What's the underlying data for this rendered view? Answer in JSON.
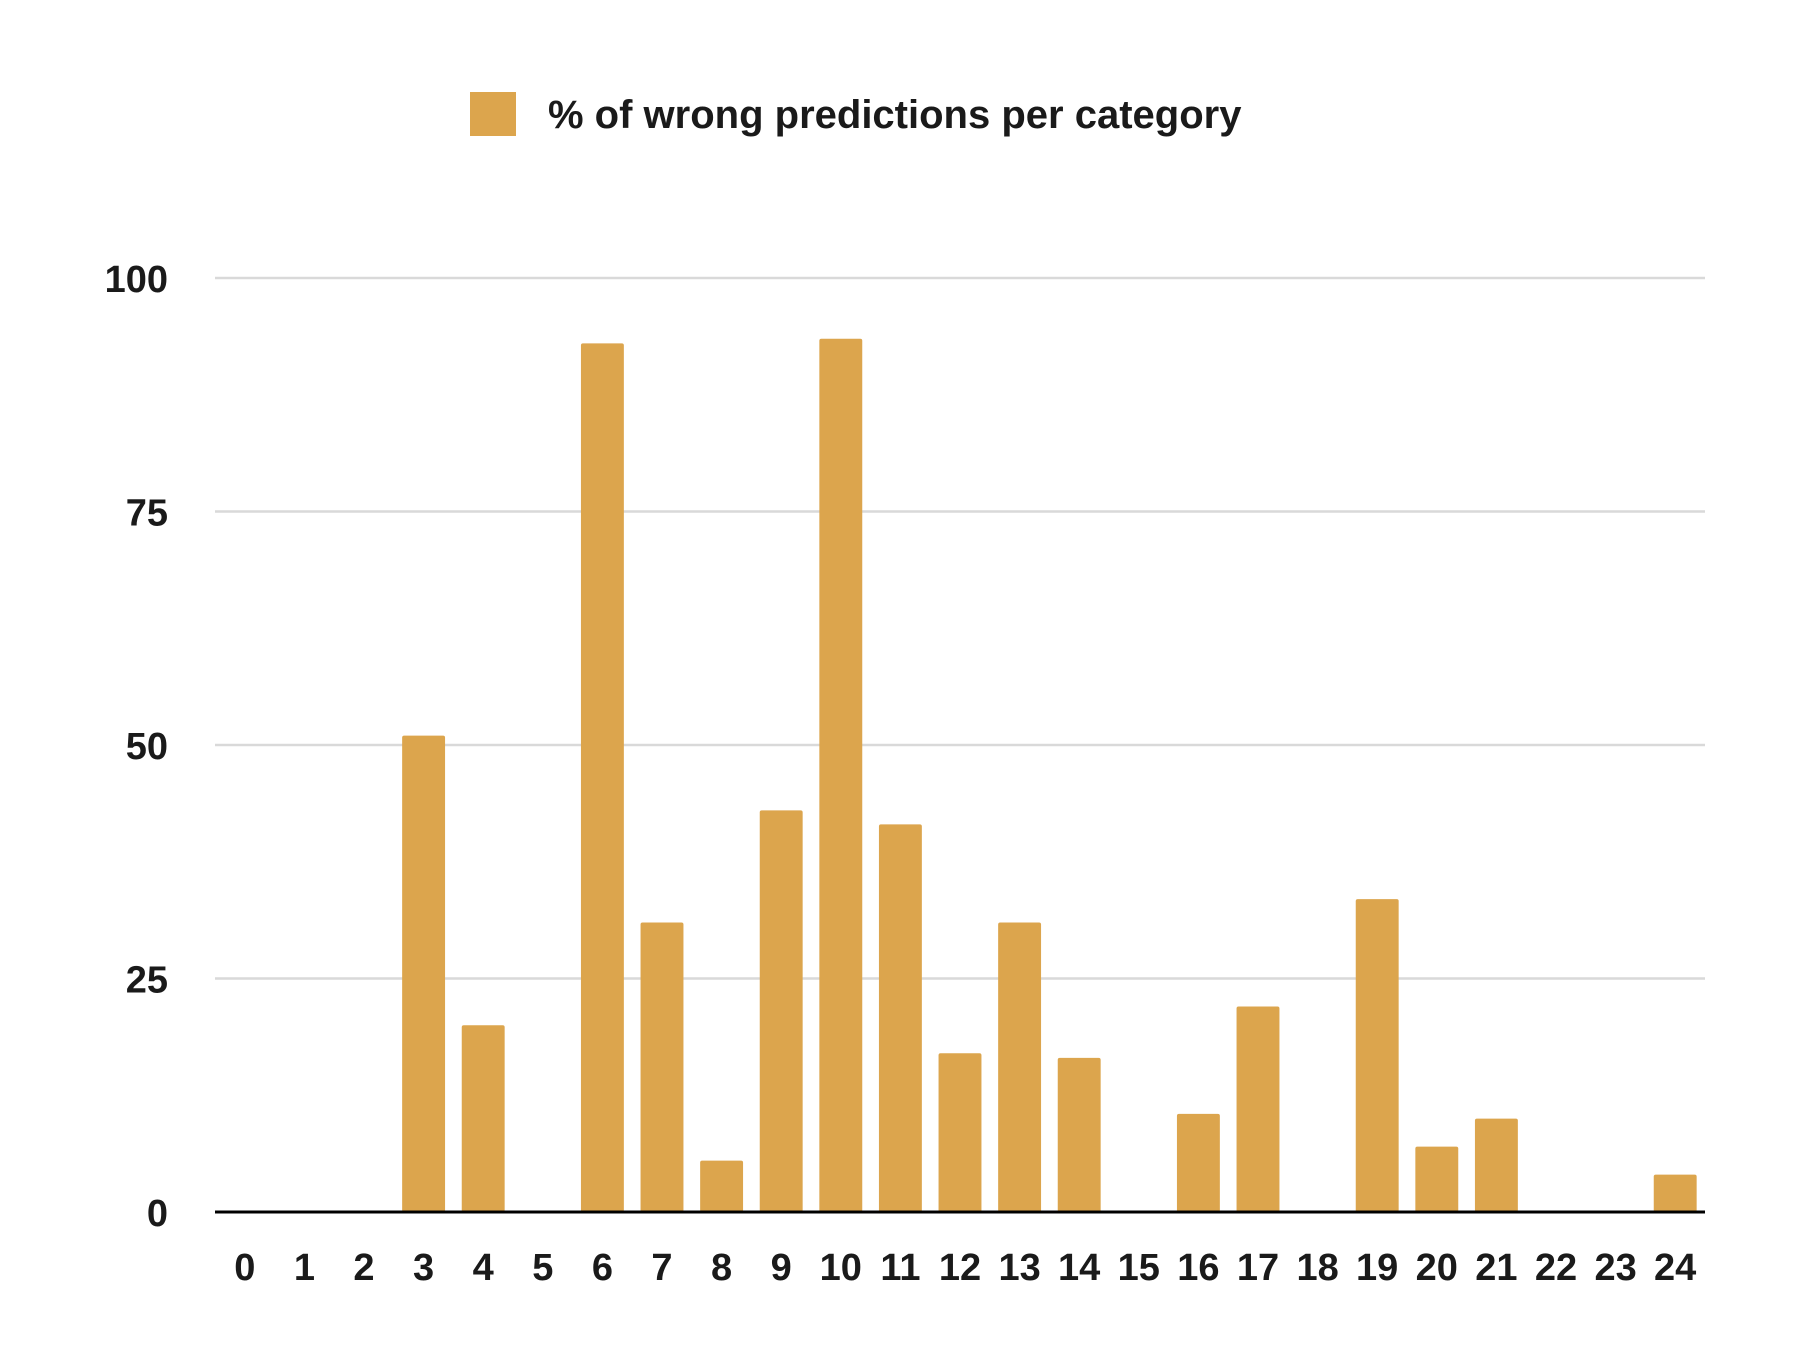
{
  "chart_data": {
    "type": "bar",
    "categories": [
      "0",
      "1",
      "2",
      "3",
      "4",
      "5",
      "6",
      "7",
      "8",
      "9",
      "10",
      "11",
      "12",
      "13",
      "14",
      "15",
      "16",
      "17",
      "18",
      "19",
      "20",
      "21",
      "22",
      "23",
      "24"
    ],
    "series": [
      {
        "name": "% of wrong predictions per category",
        "values": [
          0,
          0,
          0,
          51,
          20,
          0,
          93,
          31,
          5.5,
          43,
          93.5,
          41.5,
          17,
          31,
          16.5,
          0,
          10.5,
          22,
          0,
          33.5,
          7,
          10,
          0,
          0,
          4
        ]
      }
    ],
    "ylim": [
      0,
      100
    ],
    "yticks": [
      0,
      25,
      50,
      75,
      100
    ],
    "grid": true,
    "legend_position": "top-center",
    "xlabel": "",
    "ylabel": "",
    "colors": {
      "bar": "#dca54d",
      "grid": "#d9d9d9",
      "axis": "#000000",
      "text": "#1a1a1a"
    }
  }
}
